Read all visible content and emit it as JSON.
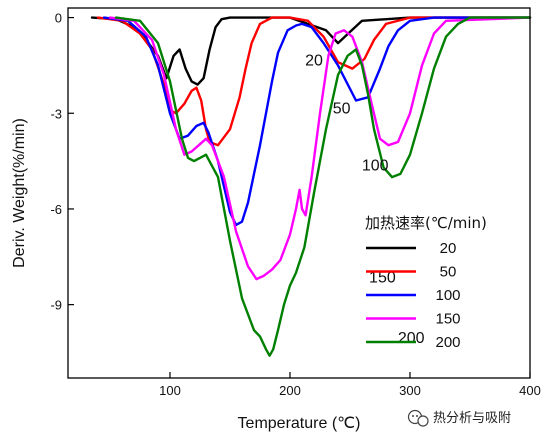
{
  "chart_data": {
    "type": "line",
    "xlabel": "Temperature (℃)",
    "ylabel": "Deriv. Weight(%/min)",
    "xlim": [
      15,
      400
    ],
    "ylim": [
      -11.3,
      0.3
    ],
    "xticks": [
      {
        "v": 100,
        "label": "100"
      },
      {
        "v": 200,
        "label": "200"
      },
      {
        "v": 300,
        "label": "300"
      },
      {
        "v": 400,
        "label": "400"
      }
    ],
    "yticks": [
      {
        "v": 0,
        "label": "0"
      },
      {
        "v": -3,
        "label": "-3"
      },
      {
        "v": -6,
        "label": "-6"
      },
      {
        "v": -9,
        "label": "-9"
      }
    ],
    "legend": {
      "title": "加热速率(℃/min)",
      "placement": "right"
    },
    "series": [
      {
        "name": "20",
        "color": "#000000",
        "x": [
          35,
          55,
          70,
          80,
          90,
          97,
          103,
          108,
          113,
          118,
          123,
          128,
          133,
          138,
          143,
          150,
          160,
          180,
          200,
          230,
          240,
          250,
          260,
          300,
          400
        ],
        "y": [
          0,
          -0.05,
          -0.3,
          -0.7,
          -1.2,
          -1.9,
          -1.2,
          -1.0,
          -1.6,
          -2.0,
          -2.1,
          -1.9,
          -1.0,
          -0.3,
          -0.05,
          0,
          0,
          0,
          0,
          -0.4,
          -0.8,
          -0.45,
          -0.1,
          0,
          0
        ]
      },
      {
        "name": "50",
        "color": "#ff0000",
        "x": [
          40,
          60,
          75,
          85,
          95,
          100,
          105,
          112,
          118,
          122,
          126,
          130,
          133,
          140,
          150,
          158,
          163,
          168,
          175,
          185,
          200,
          215,
          228,
          240,
          252,
          262,
          270,
          280,
          300,
          400
        ],
        "y": [
          0,
          -0.1,
          -0.5,
          -1.0,
          -2.1,
          -2.9,
          -3.0,
          -2.7,
          -2.3,
          -2.2,
          -2.6,
          -3.5,
          -3.9,
          -4.0,
          -3.5,
          -2.5,
          -1.6,
          -0.8,
          -0.2,
          0,
          0,
          -0.1,
          -0.6,
          -1.4,
          -1.6,
          -1.3,
          -0.7,
          -0.2,
          0,
          0
        ]
      },
      {
        "name": "100",
        "color": "#0000ff",
        "x": [
          45,
          65,
          80,
          90,
          100,
          108,
          115,
          122,
          128,
          132,
          140,
          150,
          155,
          160,
          165,
          170,
          175,
          180,
          185,
          190,
          198,
          205,
          210,
          218,
          228,
          240,
          255,
          265,
          275,
          282,
          290,
          300,
          320,
          400
        ],
        "y": [
          0,
          -0.1,
          -0.6,
          -1.5,
          -3.0,
          -3.8,
          -3.7,
          -3.4,
          -3.3,
          -3.6,
          -4.5,
          -6.1,
          -6.5,
          -6.4,
          -5.8,
          -4.9,
          -4.0,
          -3.0,
          -2.0,
          -1.1,
          -0.4,
          -0.25,
          -0.2,
          -0.3,
          -0.8,
          -1.5,
          -2.6,
          -2.5,
          -1.6,
          -0.9,
          -0.4,
          -0.1,
          0,
          0
        ]
      },
      {
        "name": "150",
        "color": "#ff00ff",
        "x": [
          50,
          70,
          85,
          95,
          105,
          112,
          118,
          124,
          130,
          135,
          145,
          155,
          165,
          172,
          178,
          185,
          192,
          200,
          205,
          208,
          210,
          213,
          218,
          225,
          232,
          238,
          245,
          252,
          260,
          268,
          275,
          282,
          290,
          300,
          310,
          320,
          330,
          400
        ],
        "y": [
          0,
          -0.1,
          -0.7,
          -1.8,
          -3.5,
          -4.3,
          -4.2,
          -4.0,
          -3.8,
          -4.0,
          -5.0,
          -6.7,
          -7.8,
          -8.2,
          -8.1,
          -7.9,
          -7.6,
          -6.8,
          -6.0,
          -5.4,
          -6.0,
          -6.2,
          -5.0,
          -3.0,
          -1.2,
          -0.5,
          -0.4,
          -0.6,
          -1.4,
          -2.7,
          -3.8,
          -4.0,
          -3.9,
          -3.0,
          -1.5,
          -0.5,
          -0.1,
          0
        ]
      },
      {
        "name": "200",
        "color": "#008000",
        "x": [
          55,
          75,
          90,
          100,
          110,
          115,
          120,
          125,
          130,
          140,
          150,
          160,
          170,
          175,
          180,
          183,
          186,
          190,
          195,
          200,
          205,
          212,
          220,
          230,
          240,
          248,
          255,
          260,
          265,
          270,
          278,
          285,
          292,
          300,
          310,
          320,
          330,
          340,
          350,
          400
        ],
        "y": [
          0,
          -0.1,
          -0.8,
          -2.0,
          -3.8,
          -4.4,
          -4.5,
          -4.4,
          -4.3,
          -5.0,
          -7.0,
          -8.8,
          -9.8,
          -10.0,
          -10.4,
          -10.6,
          -10.4,
          -9.8,
          -9.0,
          -8.4,
          -8.0,
          -7.2,
          -5.5,
          -3.5,
          -1.8,
          -1.2,
          -1.0,
          -1.5,
          -2.4,
          -3.5,
          -4.7,
          -5.0,
          -4.9,
          -4.3,
          -3.0,
          -1.6,
          -0.6,
          -0.2,
          0,
          0
        ]
      }
    ]
  },
  "curve_labels": [
    {
      "text": "20",
      "x": 220,
      "y": -1.5
    },
    {
      "text": "50",
      "x": 243,
      "y": -3.0
    },
    {
      "text": "100",
      "x": 271,
      "y": -4.8
    },
    {
      "text": "150",
      "x": 277,
      "y": -8.3
    },
    {
      "text": "200",
      "x": 301,
      "y": -10.2
    }
  ],
  "watermark": "热分析与吸附"
}
